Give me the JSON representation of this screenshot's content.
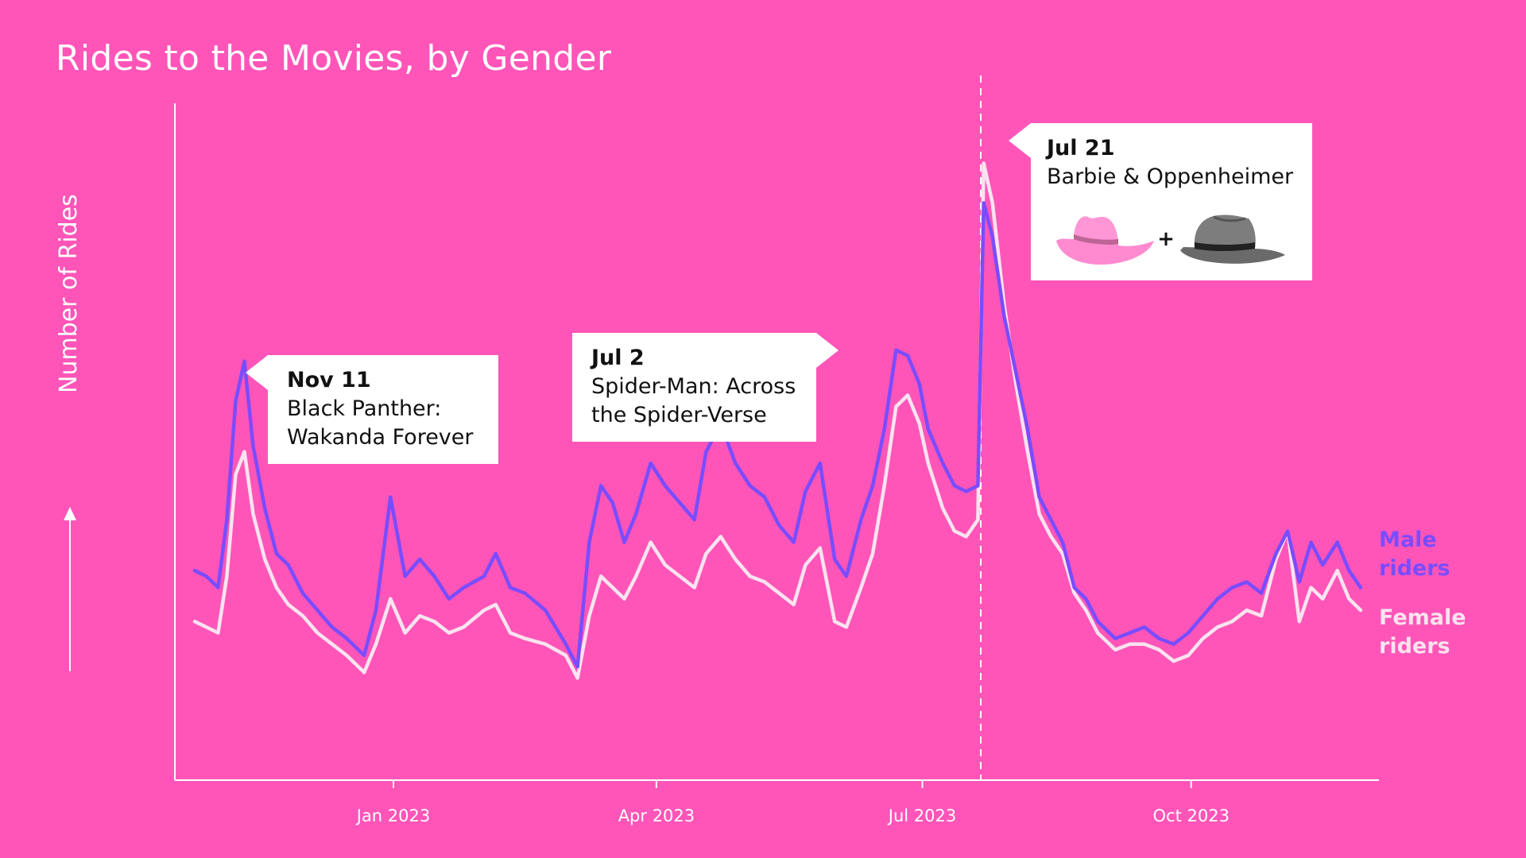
{
  "title": "Rides to the Movies, by Gender",
  "chart_data": {
    "type": "line",
    "title": "Rides to the Movies, by Gender",
    "ylabel": "Number of Rides",
    "xlabel": "",
    "x_start": "2022-10-25",
    "x_end": "2023-11-28",
    "x_ticks": [
      {
        "date": "2023-01-01",
        "label": "Jan 2023"
      },
      {
        "date": "2023-04-01",
        "label": "Apr 2023"
      },
      {
        "date": "2023-07-01",
        "label": "Jul 2023"
      },
      {
        "date": "2023-10-01",
        "label": "Oct 2023"
      }
    ],
    "ylim": [
      0,
      100
    ],
    "series": [
      {
        "name": "Male riders",
        "color": "#7a4cff",
        "points": [
          [
            "2022-10-25",
            23
          ],
          [
            "2022-10-29",
            22
          ],
          [
            "2022-11-02",
            20
          ],
          [
            "2022-11-05",
            32
          ],
          [
            "2022-11-08",
            53
          ],
          [
            "2022-11-11",
            60
          ],
          [
            "2022-11-14",
            45
          ],
          [
            "2022-11-18",
            34
          ],
          [
            "2022-11-22",
            26
          ],
          [
            "2022-11-26",
            24
          ],
          [
            "2022-12-01",
            19
          ],
          [
            "2022-12-06",
            16
          ],
          [
            "2022-12-11",
            13
          ],
          [
            "2022-12-16",
            11
          ],
          [
            "2022-12-22",
            8
          ],
          [
            "2022-12-26",
            16
          ],
          [
            "2022-12-31",
            36
          ],
          [
            "2023-01-05",
            22
          ],
          [
            "2023-01-10",
            25
          ],
          [
            "2023-01-15",
            22
          ],
          [
            "2023-01-20",
            18
          ],
          [
            "2023-01-25",
            20
          ],
          [
            "2023-02-01",
            22
          ],
          [
            "2023-02-05",
            26
          ],
          [
            "2023-02-10",
            20
          ],
          [
            "2023-02-15",
            19
          ],
          [
            "2023-02-22",
            16
          ],
          [
            "2023-03-01",
            10
          ],
          [
            "2023-03-05",
            6
          ],
          [
            "2023-03-09",
            28
          ],
          [
            "2023-03-13",
            38
          ],
          [
            "2023-03-17",
            35
          ],
          [
            "2023-03-21",
            28
          ],
          [
            "2023-03-25",
            33
          ],
          [
            "2023-03-30",
            42
          ],
          [
            "2023-04-04",
            38
          ],
          [
            "2023-04-09",
            35
          ],
          [
            "2023-04-14",
            32
          ],
          [
            "2023-04-18",
            44
          ],
          [
            "2023-04-23",
            49
          ],
          [
            "2023-04-28",
            42
          ],
          [
            "2023-05-03",
            38
          ],
          [
            "2023-05-08",
            36
          ],
          [
            "2023-05-13",
            31
          ],
          [
            "2023-05-18",
            28
          ],
          [
            "2023-05-22",
            37
          ],
          [
            "2023-05-27",
            42
          ],
          [
            "2023-06-01",
            25
          ],
          [
            "2023-06-05",
            22
          ],
          [
            "2023-06-10",
            32
          ],
          [
            "2023-06-14",
            38
          ],
          [
            "2023-06-18",
            48
          ],
          [
            "2023-06-22",
            62
          ],
          [
            "2023-06-26",
            61
          ],
          [
            "2023-06-30",
            56
          ],
          [
            "2023-07-03",
            48
          ],
          [
            "2023-07-08",
            42
          ],
          [
            "2023-07-12",
            38
          ],
          [
            "2023-07-16",
            37
          ],
          [
            "2023-07-20",
            38
          ],
          [
            "2023-07-22",
            88
          ],
          [
            "2023-07-25",
            82
          ],
          [
            "2023-07-29",
            68
          ],
          [
            "2023-08-02",
            58
          ],
          [
            "2023-08-06",
            48
          ],
          [
            "2023-08-10",
            36
          ],
          [
            "2023-08-14",
            32
          ],
          [
            "2023-08-18",
            28
          ],
          [
            "2023-08-22",
            20
          ],
          [
            "2023-08-26",
            18
          ],
          [
            "2023-08-30",
            14
          ],
          [
            "2023-09-05",
            11
          ],
          [
            "2023-09-10",
            12
          ],
          [
            "2023-09-15",
            13
          ],
          [
            "2023-09-20",
            11
          ],
          [
            "2023-09-25",
            10
          ],
          [
            "2023-09-30",
            12
          ],
          [
            "2023-10-05",
            15
          ],
          [
            "2023-10-10",
            18
          ],
          [
            "2023-10-15",
            20
          ],
          [
            "2023-10-20",
            21
          ],
          [
            "2023-10-25",
            19
          ],
          [
            "2023-10-30",
            26
          ],
          [
            "2023-11-03",
            30
          ],
          [
            "2023-11-07",
            21
          ],
          [
            "2023-11-11",
            28
          ],
          [
            "2023-11-15",
            24
          ],
          [
            "2023-11-20",
            28
          ],
          [
            "2023-11-24",
            23
          ],
          [
            "2023-11-28",
            20
          ]
        ]
      },
      {
        "name": "Female riders",
        "color": "#fbe3ef",
        "points": [
          [
            "2022-10-25",
            14
          ],
          [
            "2022-10-29",
            13
          ],
          [
            "2022-11-02",
            12
          ],
          [
            "2022-11-05",
            22
          ],
          [
            "2022-11-08",
            40
          ],
          [
            "2022-11-11",
            44
          ],
          [
            "2022-11-14",
            33
          ],
          [
            "2022-11-18",
            25
          ],
          [
            "2022-11-22",
            20
          ],
          [
            "2022-11-26",
            17
          ],
          [
            "2022-12-01",
            15
          ],
          [
            "2022-12-06",
            12
          ],
          [
            "2022-12-11",
            10
          ],
          [
            "2022-12-16",
            8
          ],
          [
            "2022-12-22",
            5
          ],
          [
            "2022-12-26",
            10
          ],
          [
            "2022-12-31",
            18
          ],
          [
            "2023-01-05",
            12
          ],
          [
            "2023-01-10",
            15
          ],
          [
            "2023-01-15",
            14
          ],
          [
            "2023-01-20",
            12
          ],
          [
            "2023-01-25",
            13
          ],
          [
            "2023-02-01",
            16
          ],
          [
            "2023-02-05",
            17
          ],
          [
            "2023-02-10",
            12
          ],
          [
            "2023-02-15",
            11
          ],
          [
            "2023-02-22",
            10
          ],
          [
            "2023-03-01",
            8
          ],
          [
            "2023-03-05",
            4
          ],
          [
            "2023-03-09",
            15
          ],
          [
            "2023-03-13",
            22
          ],
          [
            "2023-03-17",
            20
          ],
          [
            "2023-03-21",
            18
          ],
          [
            "2023-03-25",
            22
          ],
          [
            "2023-03-30",
            28
          ],
          [
            "2023-04-04",
            24
          ],
          [
            "2023-04-09",
            22
          ],
          [
            "2023-04-14",
            20
          ],
          [
            "2023-04-18",
            26
          ],
          [
            "2023-04-23",
            29
          ],
          [
            "2023-04-28",
            25
          ],
          [
            "2023-05-03",
            22
          ],
          [
            "2023-05-08",
            21
          ],
          [
            "2023-05-13",
            19
          ],
          [
            "2023-05-18",
            17
          ],
          [
            "2023-05-22",
            24
          ],
          [
            "2023-05-27",
            27
          ],
          [
            "2023-06-01",
            14
          ],
          [
            "2023-06-05",
            13
          ],
          [
            "2023-06-10",
            20
          ],
          [
            "2023-06-14",
            26
          ],
          [
            "2023-06-18",
            38
          ],
          [
            "2023-06-22",
            52
          ],
          [
            "2023-06-26",
            54
          ],
          [
            "2023-06-30",
            49
          ],
          [
            "2023-07-03",
            42
          ],
          [
            "2023-07-08",
            34
          ],
          [
            "2023-07-12",
            30
          ],
          [
            "2023-07-16",
            29
          ],
          [
            "2023-07-20",
            32
          ],
          [
            "2023-07-22",
            95
          ],
          [
            "2023-07-25",
            88
          ],
          [
            "2023-07-29",
            70
          ],
          [
            "2023-08-02",
            56
          ],
          [
            "2023-08-06",
            44
          ],
          [
            "2023-08-10",
            33
          ],
          [
            "2023-08-14",
            29
          ],
          [
            "2023-08-18",
            26
          ],
          [
            "2023-08-22",
            19
          ],
          [
            "2023-08-26",
            16
          ],
          [
            "2023-08-30",
            12
          ],
          [
            "2023-09-05",
            9
          ],
          [
            "2023-09-10",
            10
          ],
          [
            "2023-09-15",
            10
          ],
          [
            "2023-09-20",
            9
          ],
          [
            "2023-09-25",
            7
          ],
          [
            "2023-09-30",
            8
          ],
          [
            "2023-10-05",
            11
          ],
          [
            "2023-10-10",
            13
          ],
          [
            "2023-10-15",
            14
          ],
          [
            "2023-10-20",
            16
          ],
          [
            "2023-10-25",
            15
          ],
          [
            "2023-10-30",
            25
          ],
          [
            "2023-11-03",
            30
          ],
          [
            "2023-11-07",
            14
          ],
          [
            "2023-11-11",
            20
          ],
          [
            "2023-11-15",
            18
          ],
          [
            "2023-11-20",
            23
          ],
          [
            "2023-11-24",
            18
          ],
          [
            "2023-11-28",
            16
          ]
        ]
      }
    ],
    "reference_line": {
      "date": "2023-07-21",
      "style": "dashed"
    },
    "annotations": [
      {
        "date": "Nov 11",
        "film": "Black Panther:\nWakanda Forever"
      },
      {
        "date": "Jul 2",
        "film": "Spider-Man: Across\nthe Spider-Verse"
      },
      {
        "date": "Jul 21",
        "film": "Barbie & Oppenheimer",
        "plus_sign": "+",
        "icons": [
          "pink-cowboy-hat-icon",
          "gray-fedora-hat-icon"
        ]
      }
    ],
    "legend": {
      "position": "right",
      "male_label": "Male\nriders",
      "female_label": "Female\nriders"
    },
    "grid": false
  },
  "colors": {
    "background": "#ff55b8",
    "axis": "#ffffff",
    "male": "#7a4cff",
    "female": "#fbe3ef",
    "callout_bg": "#ffffff"
  }
}
